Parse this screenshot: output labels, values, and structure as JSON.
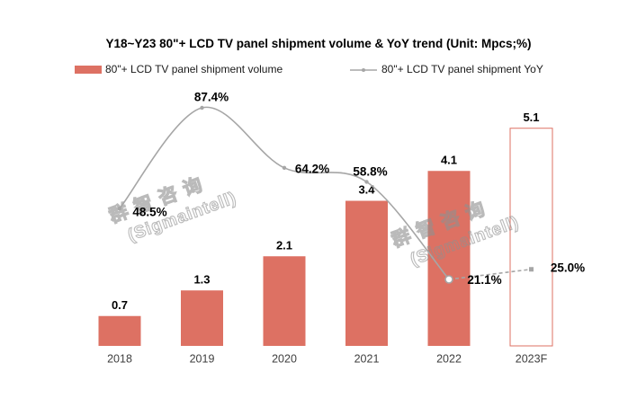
{
  "title": "Y18~Y23 80\"+ LCD TV panel shipment volume & YoY trend (Unit: Mpcs;%)",
  "legend": {
    "bar_label": "80\"+ LCD TV panel shipment volume",
    "line_label": "80\"+ LCD TV panel shipment YoY"
  },
  "watermark": {
    "line1": "群智咨询",
    "line2": "(Sigmaintell)"
  },
  "chart_data": {
    "type": "bar",
    "subtype": "bar-line combo",
    "title": "Y18~Y23 80\"+ LCD TV panel shipment volume & YoY trend (Unit: Mpcs;%)",
    "categories": [
      "2018",
      "2019",
      "2020",
      "2021",
      "2022",
      "2023F"
    ],
    "series": [
      {
        "name": "80\"+ LCD TV panel shipment volume",
        "type": "bar",
        "unit": "Mpcs",
        "values": [
          0.7,
          1.3,
          2.1,
          3.4,
          4.1,
          5.1
        ],
        "labels": [
          "0.7",
          "1.3",
          "2.1",
          "3.4",
          "4.1",
          "5.1"
        ],
        "forecast_index": 5
      },
      {
        "name": "80\"+ LCD TV panel shipment YoY",
        "type": "line",
        "unit": "%",
        "values": [
          48.5,
          87.4,
          64.2,
          58.8,
          21.1,
          25.0
        ],
        "labels": [
          "48.5%",
          "87.4%",
          "64.2%",
          "58.8%",
          "21.1%",
          "25.0%"
        ],
        "dashed_segment_from_index": 4,
        "forecast_index": 5
      }
    ],
    "colors": {
      "bar": "#DD7163",
      "forecast_bar_fill": "#FFFFFF",
      "forecast_bar_border": "#DD7163",
      "line": "#A6A6A6",
      "data_label": "#000000",
      "axis_label": "#3F3F3F"
    },
    "legend_position": "top",
    "grid": false,
    "axes_visible": false,
    "xlabel": "",
    "ylabel": ""
  }
}
